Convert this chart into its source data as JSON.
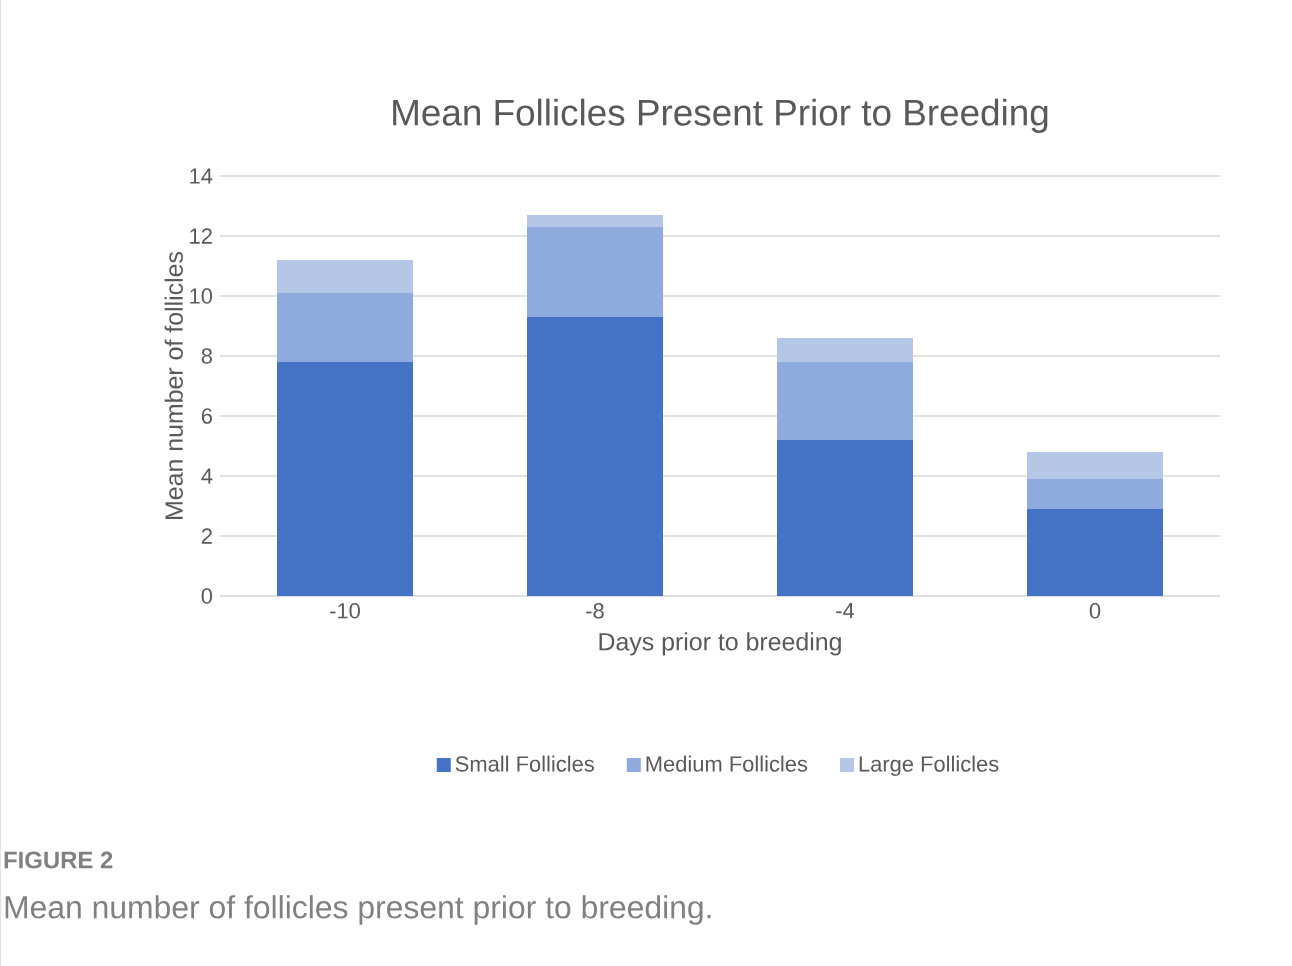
{
  "chart_data": {
    "type": "bar",
    "title": "Mean Follicles Present Prior to Breeding",
    "xlabel": "Days prior to breeding",
    "ylabel": "Mean number of follicles",
    "categories": [
      "-10",
      "-8",
      "-4",
      "0"
    ],
    "series": [
      {
        "name": "Small Follicles",
        "color": "#4472c4",
        "values": [
          7.8,
          9.3,
          5.2,
          2.9
        ]
      },
      {
        "name": "Medium Follicles",
        "color": "#8faadc",
        "values": [
          2.3,
          3.0,
          2.6,
          1.0
        ]
      },
      {
        "name": "Large Follicles",
        "color": "#b4c7e7",
        "values": [
          1.1,
          0.4,
          0.8,
          0.9
        ]
      }
    ],
    "stacked": true,
    "ylim": [
      0,
      14
    ],
    "yticks": [
      0,
      2,
      4,
      6,
      8,
      10,
      12,
      14
    ],
    "grid": "y",
    "legend": "bottom",
    "annotations": [
      "FIGURE 2",
      "Mean number of follicles present prior to breeding."
    ]
  }
}
